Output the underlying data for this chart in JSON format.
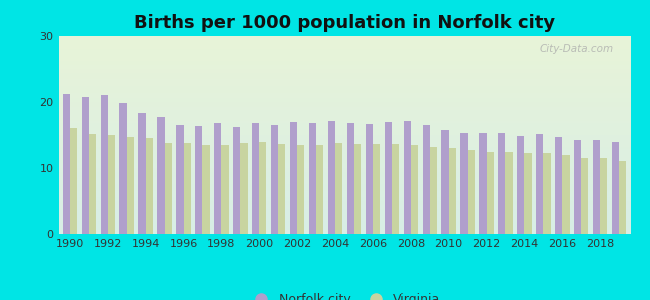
{
  "title": "Births per 1000 population in Norfolk city",
  "years": [
    1990,
    1991,
    1992,
    1993,
    1994,
    1995,
    1996,
    1997,
    1998,
    1999,
    2000,
    2001,
    2002,
    2003,
    2004,
    2005,
    2006,
    2007,
    2008,
    2009,
    2010,
    2011,
    2012,
    2013,
    2014,
    2015,
    2016,
    2017,
    2018,
    2019
  ],
  "norfolk": [
    21.2,
    20.8,
    21.1,
    19.9,
    18.3,
    17.8,
    16.5,
    16.3,
    16.8,
    16.2,
    16.8,
    16.5,
    17.0,
    16.8,
    17.1,
    16.8,
    16.7,
    17.0,
    17.1,
    16.5,
    15.8,
    15.3,
    15.3,
    15.3,
    14.8,
    15.2,
    14.7,
    14.2,
    14.3,
    13.9
  ],
  "virginia": [
    16.0,
    15.1,
    15.0,
    14.7,
    14.5,
    13.8,
    13.8,
    13.5,
    13.5,
    13.8,
    14.0,
    13.7,
    13.5,
    13.5,
    13.8,
    13.7,
    13.7,
    13.7,
    13.5,
    13.2,
    13.0,
    12.7,
    12.5,
    12.4,
    12.2,
    12.2,
    11.9,
    11.5,
    11.5,
    11.1
  ],
  "norfolk_color": "#b09fcc",
  "virginia_color": "#c8d4a0",
  "outer_bg": "#00e5e5",
  "ylim": [
    0,
    30
  ],
  "yticks": [
    0,
    10,
    20,
    30
  ],
  "title_fontsize": 13,
  "legend_norfolk": "Norfolk city",
  "legend_virginia": "Virginia",
  "watermark": "City-Data.com"
}
